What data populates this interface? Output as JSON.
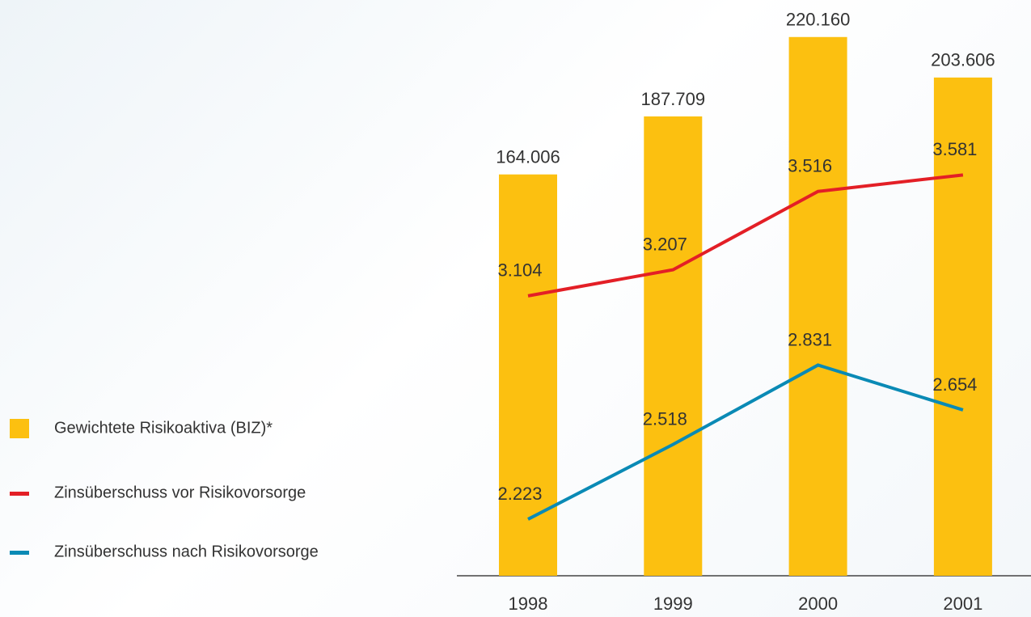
{
  "chart_data": {
    "type": "bar",
    "categories": [
      "1998",
      "1999",
      "2000",
      "2001"
    ],
    "series": [
      {
        "name": "Gewichtete Risikoaktiva (BIZ)*",
        "type": "bar",
        "color": "#fcc010",
        "values": [
          164006,
          187709,
          220160,
          203606
        ],
        "value_labels": [
          "164.006",
          "187.709",
          "220.160",
          "203.606"
        ]
      },
      {
        "name": "Zinsüberschuss vor Risikovorsorge",
        "type": "line",
        "axis": "y2",
        "color": "#e31f26",
        "values": [
          3104,
          3207,
          3516,
          3581
        ],
        "value_labels": [
          "3.104",
          "3.207",
          "3.516",
          "3.581"
        ]
      },
      {
        "name": "Zinsüberschuss nach Risikovorsorge",
        "type": "line",
        "axis": "y2",
        "color": "#0a8ab5",
        "values": [
          2223,
          2518,
          2831,
          2654
        ],
        "value_labels": [
          "2.223",
          "2.518",
          "2.831",
          "2.654"
        ]
      }
    ],
    "ylim": [
      0,
      230000
    ],
    "y2lim": [
      2000,
      4220
    ]
  }
}
